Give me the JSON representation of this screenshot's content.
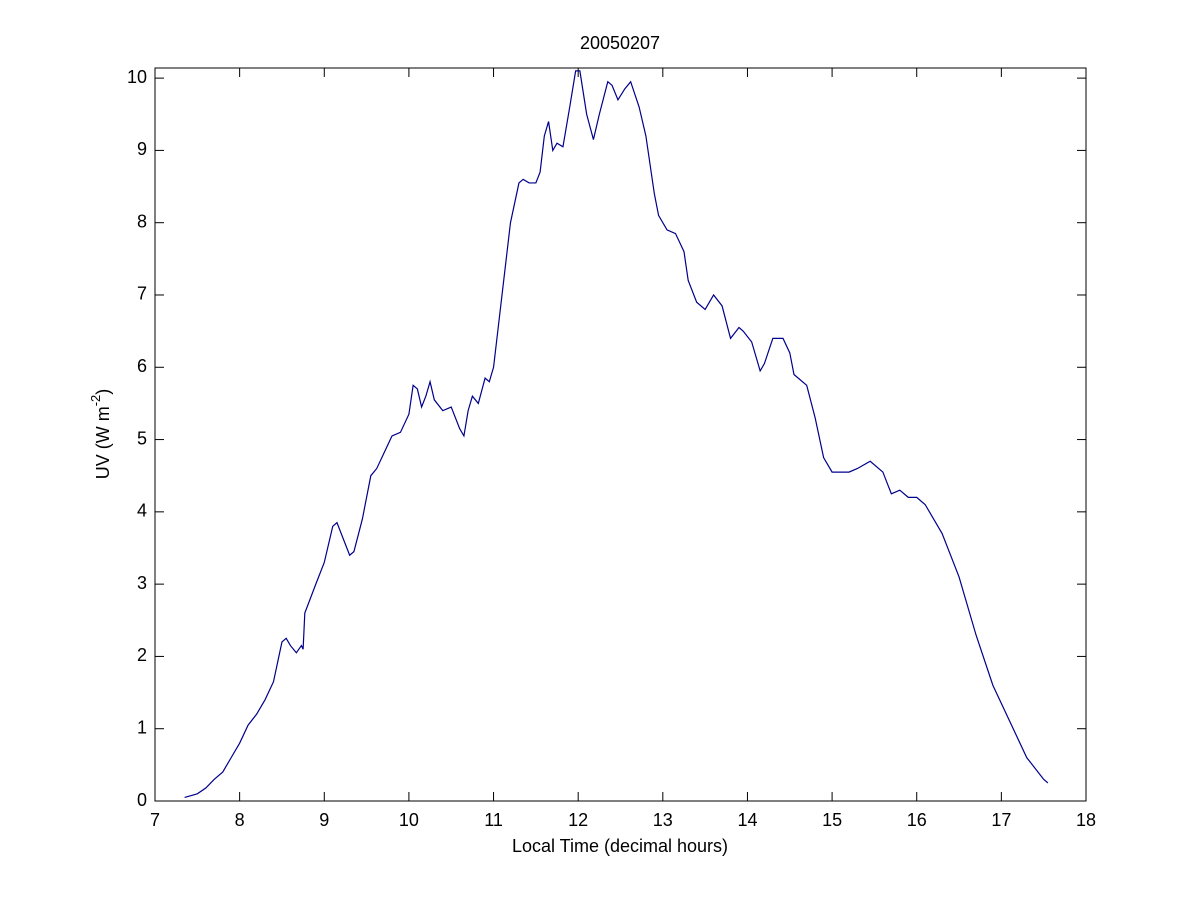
{
  "chart_data": {
    "type": "line",
    "title": "20050207",
    "xlabel": "Local Time (decimal hours)",
    "ylabel": {
      "text": "UV (W m",
      "superscript": "-2",
      "end": ")"
    },
    "xlim": [
      7,
      18
    ],
    "ylim": [
      0,
      10.14
    ],
    "xticks": [
      7,
      8,
      9,
      10,
      11,
      12,
      13,
      14,
      15,
      16,
      17,
      18
    ],
    "yticks": [
      0,
      1,
      2,
      3,
      4,
      5,
      6,
      7,
      8,
      9,
      10
    ],
    "grid": false,
    "series": [
      {
        "color": "#00008b",
        "x": [
          7.35,
          7.5,
          7.6,
          7.7,
          7.8,
          7.9,
          8.0,
          8.1,
          8.2,
          8.3,
          8.4,
          8.5,
          8.55,
          8.6,
          8.67,
          8.73,
          8.75,
          8.77,
          8.9,
          9.0,
          9.1,
          9.15,
          9.2,
          9.3,
          9.35,
          9.45,
          9.55,
          9.62,
          9.7,
          9.8,
          9.9,
          10.0,
          10.05,
          10.1,
          10.15,
          10.2,
          10.25,
          10.3,
          10.4,
          10.5,
          10.6,
          10.65,
          10.7,
          10.75,
          10.82,
          10.9,
          10.95,
          11.0,
          11.1,
          11.15,
          11.2,
          11.3,
          11.35,
          11.42,
          11.5,
          11.55,
          11.6,
          11.65,
          11.7,
          11.75,
          11.82,
          11.9,
          11.97,
          12.02,
          12.1,
          12.18,
          12.25,
          12.35,
          12.4,
          12.47,
          12.55,
          12.62,
          12.72,
          12.8,
          12.9,
          12.95,
          13.05,
          13.15,
          13.25,
          13.3,
          13.4,
          13.5,
          13.6,
          13.7,
          13.8,
          13.9,
          13.95,
          14.05,
          14.15,
          14.2,
          14.3,
          14.42,
          14.5,
          14.55,
          14.7,
          14.8,
          14.9,
          15.0,
          15.1,
          15.2,
          15.3,
          15.45,
          15.6,
          15.7,
          15.8,
          15.9,
          16.0,
          16.1,
          16.3,
          16.5,
          16.7,
          16.9,
          17.1,
          17.3,
          17.5,
          17.55
        ],
        "values": [
          0.05,
          0.1,
          0.18,
          0.3,
          0.4,
          0.6,
          0.8,
          1.05,
          1.2,
          1.4,
          1.65,
          2.2,
          2.25,
          2.15,
          2.05,
          2.15,
          2.1,
          2.6,
          3.0,
          3.3,
          3.8,
          3.85,
          3.7,
          3.4,
          3.45,
          3.9,
          4.5,
          4.6,
          4.8,
          5.05,
          5.1,
          5.35,
          5.75,
          5.7,
          5.45,
          5.6,
          5.8,
          5.55,
          5.4,
          5.45,
          5.15,
          5.05,
          5.4,
          5.6,
          5.5,
          5.85,
          5.8,
          6.0,
          7.0,
          7.5,
          8.0,
          8.55,
          8.6,
          8.55,
          8.55,
          8.7,
          9.2,
          9.4,
          9.0,
          9.1,
          9.05,
          9.6,
          10.1,
          10.1,
          9.5,
          9.15,
          9.5,
          9.95,
          9.9,
          9.7,
          9.85,
          9.95,
          9.6,
          9.2,
          8.4,
          8.1,
          7.9,
          7.85,
          7.6,
          7.2,
          6.9,
          6.8,
          7.0,
          6.85,
          6.4,
          6.55,
          6.5,
          6.35,
          5.95,
          6.05,
          6.4,
          6.4,
          6.2,
          5.9,
          5.75,
          5.3,
          4.75,
          4.55,
          4.55,
          4.55,
          4.6,
          4.7,
          4.55,
          4.25,
          4.3,
          4.2,
          4.2,
          4.1,
          3.7,
          3.1,
          2.3,
          1.6,
          1.1,
          0.6,
          0.3,
          0.25
        ]
      }
    ]
  }
}
